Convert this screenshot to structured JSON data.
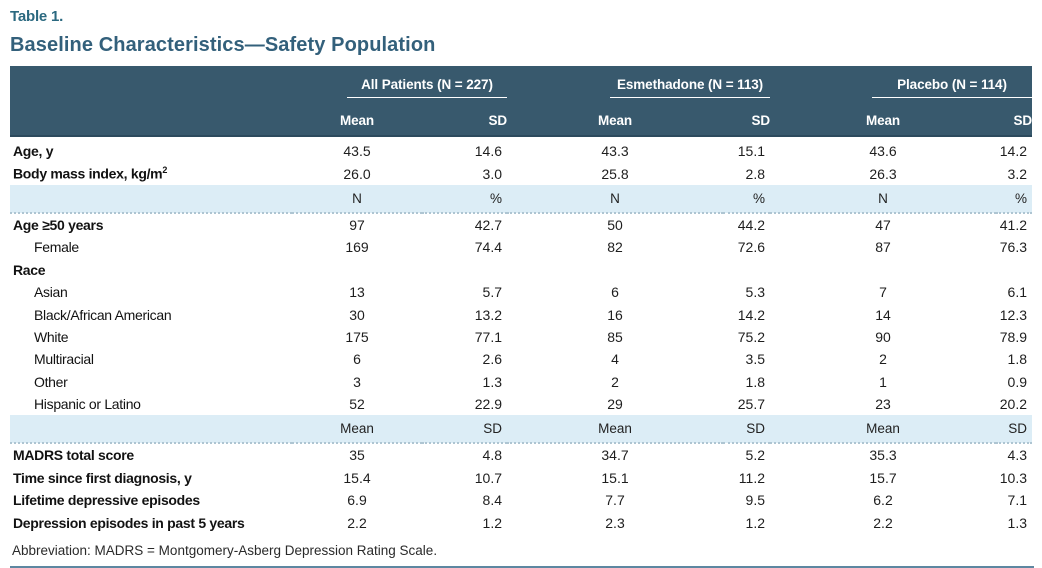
{
  "header": {
    "table_label": "Table 1.",
    "title": "Baseline Characteristics—Safety Population"
  },
  "colors": {
    "header_bg": "#38596d",
    "band_bg": "#dcedf6",
    "title_text": "#33607b",
    "table_label_text": "#2b6980",
    "footnote_rule": "#5d87a1"
  },
  "table": {
    "groups": [
      {
        "label": "All Patients (N = 227)"
      },
      {
        "label": "Esmethadone (N = 113)"
      },
      {
        "label": "Placebo (N = 114)"
      }
    ],
    "stat_headers": [
      "Mean",
      "SD",
      "Mean",
      "SD",
      "Mean",
      "SD"
    ],
    "rows": [
      {
        "type": "data",
        "label": "Age, y",
        "indent": false,
        "values": [
          "43.5",
          "14.6",
          "43.3",
          "15.1",
          "43.6",
          "14.2"
        ]
      },
      {
        "type": "data",
        "label": "Body mass index, kg/m",
        "label_sup": "2",
        "indent": false,
        "values": [
          "26.0",
          "3.0",
          "25.8",
          "2.8",
          "26.3",
          "3.2"
        ]
      },
      {
        "type": "band",
        "cells": [
          "N",
          "%",
          "N",
          "%",
          "N",
          "%"
        ]
      },
      {
        "type": "data",
        "label": "Age ≥50 years",
        "indent": false,
        "values": [
          "97",
          "42.7",
          "50",
          "44.2",
          "47",
          "41.2"
        ]
      },
      {
        "type": "data",
        "label": "Female",
        "indent": true,
        "values": [
          "169",
          "74.4",
          "82",
          "72.6",
          "87",
          "76.3"
        ]
      },
      {
        "type": "data",
        "label": "Race",
        "indent": false,
        "values": [
          "",
          "",
          "",
          "",
          "",
          ""
        ]
      },
      {
        "type": "data",
        "label": "Asian",
        "indent": true,
        "values": [
          "13",
          "5.7",
          "6",
          "5.3",
          "7",
          "6.1"
        ]
      },
      {
        "type": "data",
        "label": "Black/African American",
        "indent": true,
        "values": [
          "30",
          "13.2",
          "16",
          "14.2",
          "14",
          "12.3"
        ]
      },
      {
        "type": "data",
        "label": "White",
        "indent": true,
        "values": [
          "175",
          "77.1",
          "85",
          "75.2",
          "90",
          "78.9"
        ]
      },
      {
        "type": "data",
        "label": "Multiracial",
        "indent": true,
        "values": [
          "6",
          "2.6",
          "4",
          "3.5",
          "2",
          "1.8"
        ]
      },
      {
        "type": "data",
        "label": "Other",
        "indent": true,
        "values": [
          "3",
          "1.3",
          "2",
          "1.8",
          "1",
          "0.9"
        ]
      },
      {
        "type": "data",
        "label": "Hispanic or Latino",
        "indent": true,
        "values": [
          "52",
          "22.9",
          "29",
          "25.7",
          "23",
          "20.2"
        ]
      },
      {
        "type": "band",
        "cells": [
          "Mean",
          "SD",
          "Mean",
          "SD",
          "Mean",
          "SD"
        ]
      },
      {
        "type": "data",
        "label": "MADRS total score",
        "indent": false,
        "values": [
          "35",
          "4.8",
          "34.7",
          "5.2",
          "35.3",
          "4.3"
        ]
      },
      {
        "type": "data",
        "label": "Time since first diagnosis, y",
        "indent": false,
        "values": [
          "15.4",
          "10.7",
          "15.1",
          "11.2",
          "15.7",
          "10.3"
        ]
      },
      {
        "type": "data",
        "label": "Lifetime depressive episodes",
        "indent": false,
        "values": [
          "6.9",
          "8.4",
          "7.7",
          "9.5",
          "6.2",
          "7.1"
        ]
      },
      {
        "type": "data",
        "label": "Depression episodes in past 5 years",
        "indent": false,
        "values": [
          "2.2",
          "1.2",
          "2.3",
          "1.2",
          "2.2",
          "1.3"
        ]
      }
    ]
  },
  "footnote": {
    "text": "Abbreviation: MADRS = Montgomery-Asberg Depression Rating Scale."
  }
}
